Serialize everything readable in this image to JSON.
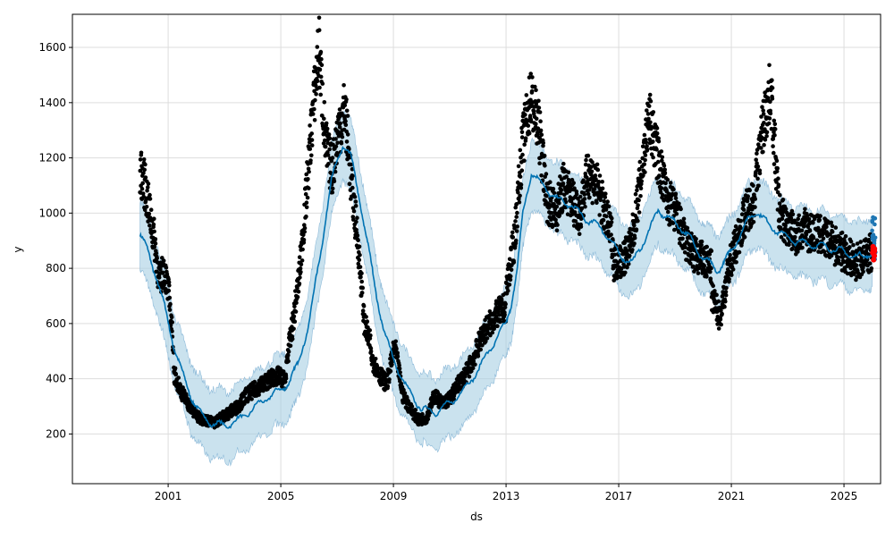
{
  "chart_data": {
    "type": "line",
    "title": "",
    "xlabel": "ds",
    "ylabel": "y",
    "xlim": [
      1997.6,
      2026.3
    ],
    "ylim": [
      20,
      1720
    ],
    "grid": true,
    "x_ticks": [
      2001,
      2005,
      2009,
      2013,
      2017,
      2021,
      2025
    ],
    "y_ticks": [
      200,
      400,
      600,
      800,
      1000,
      1200,
      1400,
      1600
    ],
    "colors": {
      "actual": "#000000",
      "forecast": "#0072B2",
      "band": "#a6cee3",
      "recent": "#ff0000",
      "future": "#1f77b4"
    },
    "forecast": {
      "x": [
        2000.0,
        2000.3,
        2000.6,
        2000.9,
        2001.2,
        2001.5,
        2001.8,
        2002.1,
        2002.5,
        2003.0,
        2003.5,
        2004.0,
        2004.5,
        2005.0,
        2005.3,
        2005.6,
        2006.0,
        2006.4,
        2006.8,
        2007.2,
        2007.5,
        2007.8,
        2008.1,
        2008.4,
        2008.7,
        2009.0,
        2009.5,
        2010.0,
        2010.5,
        2011.0,
        2011.5,
        2012.0,
        2012.5,
        2013.0,
        2013.2,
        2013.4,
        2013.6,
        2013.9,
        2014.3,
        2014.8,
        2015.3,
        2015.8,
        2016.2,
        2016.6,
        2017.0,
        2017.5,
        2018.0,
        2018.4,
        2018.8,
        2019.2,
        2019.6,
        2019.9,
        2020.2,
        2020.5,
        2020.8,
        2021.1,
        2021.5,
        2021.9,
        2022.3,
        2022.7,
        2023.2,
        2023.7,
        2024.2,
        2024.7,
        2025.2,
        2025.7,
        2026.0
      ],
      "yhat": [
        920,
        860,
        760,
        650,
        520,
        420,
        340,
        280,
        240,
        230,
        250,
        290,
        330,
        360,
        390,
        450,
        600,
        850,
        1120,
        1250,
        1200,
        1050,
        880,
        700,
        560,
        470,
        360,
        290,
        280,
        310,
        360,
        430,
        520,
        600,
        680,
        800,
        1000,
        1150,
        1100,
        1050,
        1030,
        980,
        960,
        920,
        850,
        820,
        920,
        1010,
        980,
        950,
        900,
        850,
        820,
        790,
        830,
        880,
        960,
        1010,
        960,
        930,
        900,
        890,
        880,
        870,
        850,
        840,
        860
      ],
      "band_halfwidth": 125
    },
    "actual_segments": [
      {
        "from": 2000.0,
        "to": 2001.2,
        "y": [
          1150,
          1100,
          1000,
          900,
          750,
          800,
          700,
          500
        ]
      },
      {
        "from": 2001.2,
        "to": 2005.2,
        "y": [
          420,
          350,
          300,
          260,
          250,
          240,
          260,
          280,
          300,
          340,
          360,
          380,
          400,
          410,
          390
        ]
      },
      {
        "from": 2005.2,
        "to": 2008.2,
        "y": [
          460,
          600,
          780,
          1050,
          1350,
          1600,
          1250,
          1150,
          1300,
          1380,
          1100,
          900,
          600,
          520
        ]
      },
      {
        "from": 2008.2,
        "to": 2013.0,
        "y": [
          480,
          420,
          380,
          520,
          340,
          290,
          250,
          260,
          340,
          310,
          330,
          380,
          420,
          480,
          560,
          600,
          640,
          660
        ]
      },
      {
        "from": 2013.0,
        "to": 2016.8,
        "y": [
          720,
          900,
          1250,
          1420,
          1300,
          1050,
          1000,
          1100,
          1050,
          1000,
          1150,
          1100,
          1000,
          900
        ]
      },
      {
        "from": 2016.8,
        "to": 2020.3,
        "y": [
          820,
          830,
          880,
          1100,
          1350,
          1200,
          1050,
          1000,
          900,
          850,
          830,
          800
        ]
      },
      {
        "from": 2020.3,
        "to": 2026.0,
        "y": [
          700,
          620,
          800,
          900,
          1000,
          1050,
          1300,
          1450,
          1000,
          950,
          920,
          940,
          930,
          920,
          900,
          870,
          850,
          820,
          840,
          860
        ]
      }
    ]
  }
}
